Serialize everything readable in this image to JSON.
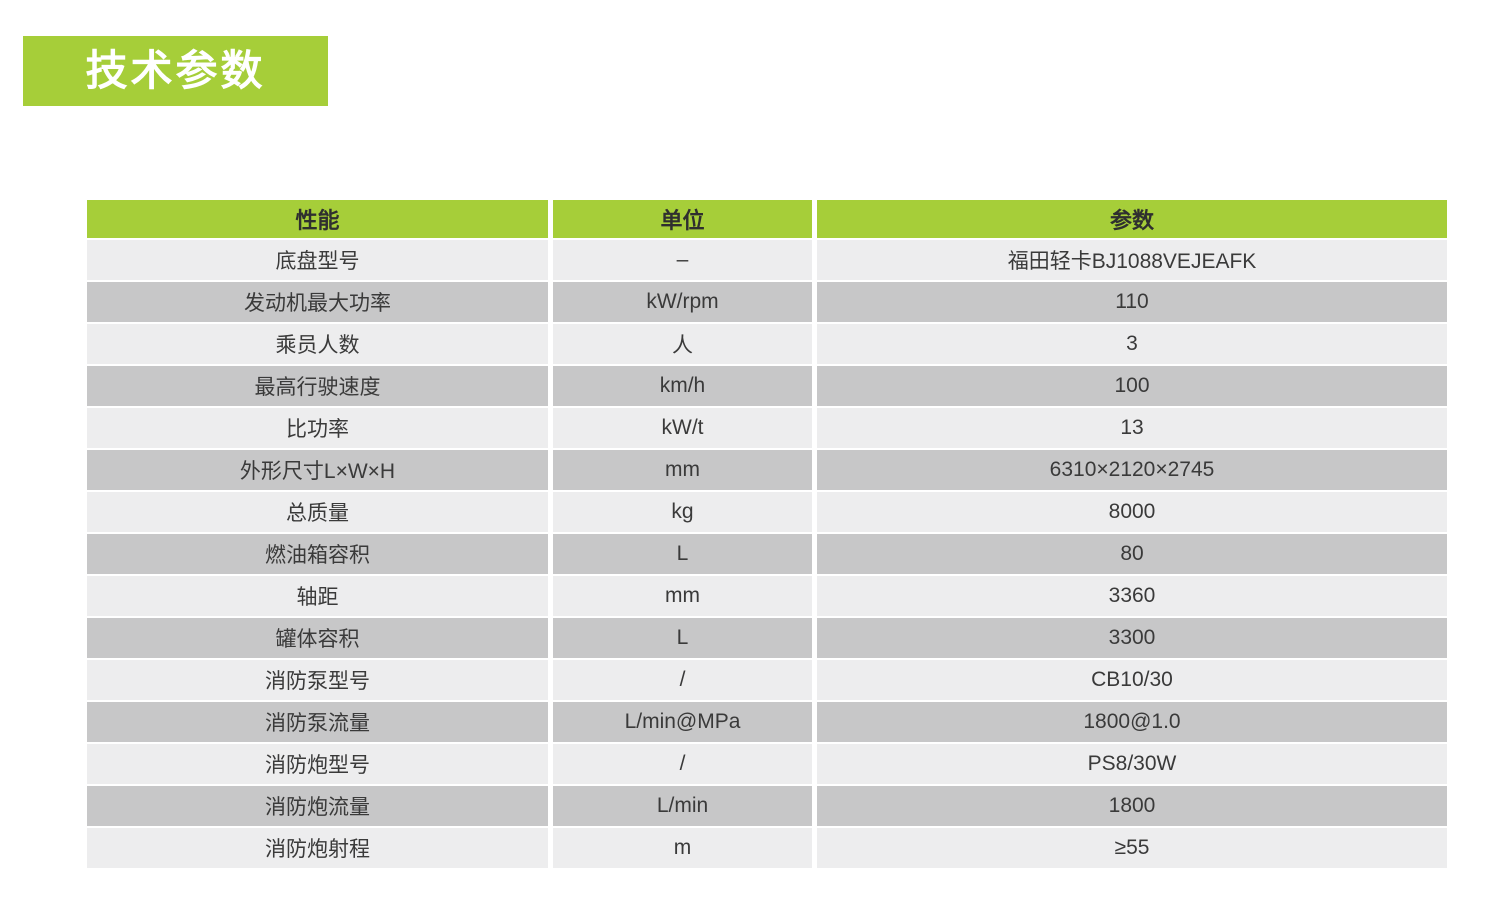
{
  "title": {
    "text": "技术参数"
  },
  "table": {
    "headers": {
      "property": "性能",
      "unit": "单位",
      "value": "参数"
    },
    "rows": [
      {
        "name": "底盘型号",
        "unit": "–",
        "value": "福田轻卡BJ1088VEJEAFK"
      },
      {
        "name": "发动机最大功率",
        "unit": "kW/rpm",
        "value": "110"
      },
      {
        "name": "乘员人数",
        "unit": "人",
        "value": "3"
      },
      {
        "name": "最高行驶速度",
        "unit": "km/h",
        "value": "100"
      },
      {
        "name": "比功率",
        "unit": "kW/t",
        "value": "13"
      },
      {
        "name": "外形尺寸L×W×H",
        "unit": "mm",
        "value": "6310×2120×2745"
      },
      {
        "name": "总质量",
        "unit": "kg",
        "value": "8000"
      },
      {
        "name": "燃油箱容积",
        "unit": "L",
        "value": "80"
      },
      {
        "name": "轴距",
        "unit": "mm",
        "value": "3360"
      },
      {
        "name": "罐体容积",
        "unit": "L",
        "value": "3300"
      },
      {
        "name": "消防泵型号",
        "unit": "/",
        "value": "CB10/30"
      },
      {
        "name": "消防泵流量",
        "unit": "L/min@MPa",
        "value": "1800@1.0"
      },
      {
        "name": "消防炮型号",
        "unit": "/",
        "value": "PS8/30W"
      },
      {
        "name": "消防炮流量",
        "unit": "L/min",
        "value": "1800"
      },
      {
        "name": "消防炮射程",
        "unit": "m",
        "value": "≥55"
      }
    ]
  },
  "colors": {
    "accent_green": "#a6ce39",
    "row_light": "#ededee",
    "row_dark": "#c7c7c8",
    "header_text": "#2f2f2f",
    "body_text": "#3a3a3a",
    "title_text": "#ffffff"
  }
}
